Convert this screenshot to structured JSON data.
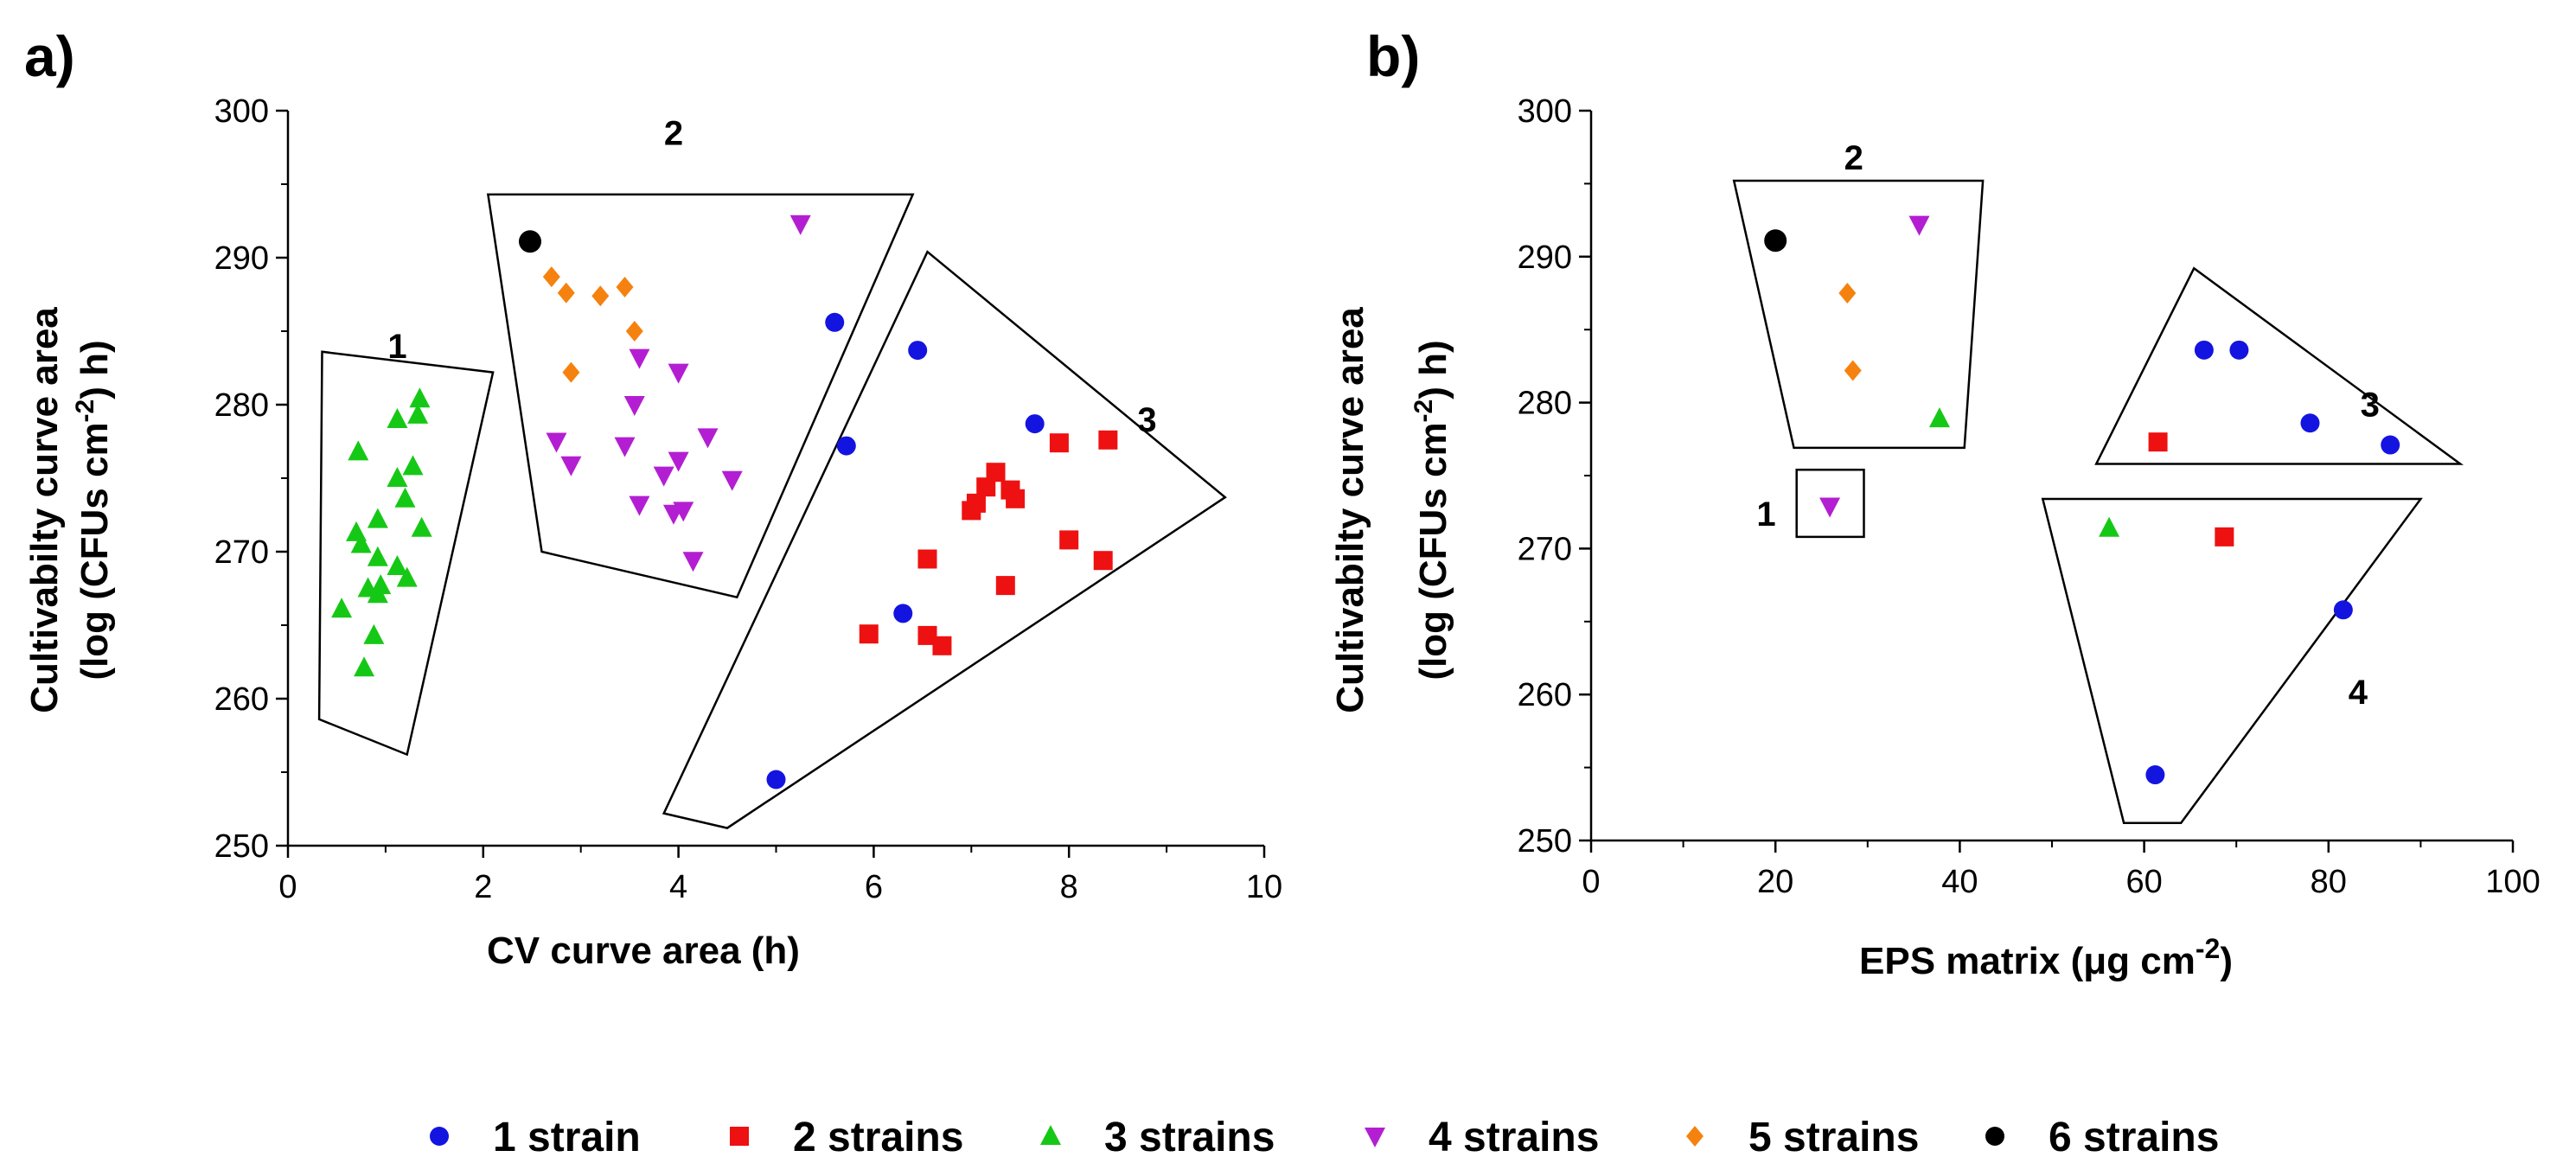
{
  "colors": {
    "1 strain": "#1414e0",
    "2 strains": "#ee1111",
    "3 strains": "#16c816",
    "4 strains": "#b41ed2",
    "5 strains": "#f5820f",
    "6 strains": "#000000"
  },
  "legend": [
    {
      "label": "1 strain",
      "marker": "circle"
    },
    {
      "label": "2 strains",
      "marker": "square"
    },
    {
      "label": "3 strains",
      "marker": "triangle-up"
    },
    {
      "label": "4 strains",
      "marker": "triangle-down"
    },
    {
      "label": "5 strains",
      "marker": "diamond"
    },
    {
      "label": "6 strains",
      "marker": "circle"
    }
  ],
  "chart_data": [
    {
      "type": "scatter",
      "panel_letter": "a)",
      "title": "",
      "xlabel": "CV curve area (h)",
      "ylabel_line1": "Cultivabilty curve area",
      "ylabel_line2_pre": "(log (CFUs cm",
      "ylabel_line2_sup": "-2",
      "ylabel_line2_post": ") h)",
      "xlim": [
        0,
        10
      ],
      "ylim": [
        250,
        300
      ],
      "xticks": [
        0,
        2,
        4,
        6,
        8,
        10
      ],
      "xticklabels": [
        "0",
        "2",
        "4",
        "6",
        "8",
        "10"
      ],
      "yticks": [
        250,
        260,
        270,
        280,
        290,
        300
      ],
      "yticklabels": [
        "250",
        "260",
        "270",
        "280",
        "290",
        "300"
      ],
      "series": [
        {
          "name": "1 strain",
          "marker": "circle",
          "points": [
            [
              5.6,
              285.6
            ],
            [
              6.45,
              283.7
            ],
            [
              5.72,
              277.2
            ],
            [
              7.65,
              278.7
            ],
            [
              6.3,
              265.8
            ],
            [
              5.0,
              254.5
            ]
          ]
        },
        {
          "name": "2 strains",
          "marker": "square",
          "points": [
            [
              8.4,
              277.6
            ],
            [
              7.9,
              277.4
            ],
            [
              7.25,
              275.4
            ],
            [
              7.15,
              274.4
            ],
            [
              7.4,
              274.2
            ],
            [
              7.45,
              273.6
            ],
            [
              7.05,
              273.3
            ],
            [
              7.0,
              272.8
            ],
            [
              8.0,
              270.8
            ],
            [
              6.55,
              269.5
            ],
            [
              8.35,
              269.4
            ],
            [
              7.35,
              267.7
            ],
            [
              5.95,
              264.4
            ],
            [
              6.55,
              264.3
            ],
            [
              6.7,
              263.6
            ]
          ]
        },
        {
          "name": "3 strains",
          "marker": "triangle-up",
          "points": [
            [
              1.35,
              280.4
            ],
            [
              1.12,
              279.0
            ],
            [
              1.33,
              279.3
            ],
            [
              0.72,
              276.8
            ],
            [
              1.28,
              275.8
            ],
            [
              1.12,
              275.0
            ],
            [
              1.2,
              273.6
            ],
            [
              0.92,
              272.2
            ],
            [
              1.37,
              271.6
            ],
            [
              0.7,
              271.3
            ],
            [
              0.75,
              270.5
            ],
            [
              0.92,
              269.6
            ],
            [
              1.12,
              269.0
            ],
            [
              1.22,
              268.2
            ],
            [
              0.95,
              267.7
            ],
            [
              0.82,
              267.5
            ],
            [
              0.92,
              267.1
            ],
            [
              0.55,
              266.1
            ],
            [
              0.88,
              264.3
            ],
            [
              0.78,
              262.1
            ]
          ]
        },
        {
          "name": "4 strains",
          "marker": "triangle-down",
          "points": [
            [
              5.25,
              292.3
            ],
            [
              3.6,
              283.2
            ],
            [
              4.0,
              282.2
            ],
            [
              3.55,
              280.0
            ],
            [
              4.3,
              277.8
            ],
            [
              2.75,
              277.5
            ],
            [
              3.45,
              277.2
            ],
            [
              4.0,
              276.2
            ],
            [
              2.9,
              275.9
            ],
            [
              3.85,
              275.2
            ],
            [
              4.55,
              274.9
            ],
            [
              3.6,
              273.2
            ],
            [
              4.05,
              272.8
            ],
            [
              3.95,
              272.6
            ],
            [
              4.15,
              269.4
            ]
          ]
        },
        {
          "name": "5 strains",
          "marker": "diamond",
          "points": [
            [
              2.7,
              288.7
            ],
            [
              2.85,
              287.6
            ],
            [
              3.2,
              287.4
            ],
            [
              3.45,
              288.0
            ],
            [
              3.55,
              285.0
            ],
            [
              2.9,
              282.2
            ]
          ]
        },
        {
          "name": "6 strains",
          "marker": "circle",
          "points": [
            [
              2.48,
              291.1
            ]
          ]
        }
      ],
      "clusters": [
        {
          "label": "1",
          "label_at": [
            1.12,
            284.0
          ],
          "vertices": [
            [
              0.35,
              283.6
            ],
            [
              2.1,
              282.2
            ],
            [
              1.22,
              256.2
            ],
            [
              0.32,
              258.6
            ]
          ]
        },
        {
          "label": "2",
          "label_at": [
            3.95,
            298.5
          ],
          "vertices": [
            [
              2.05,
              294.3
            ],
            [
              6.4,
              294.3
            ],
            [
              4.6,
              266.9
            ],
            [
              2.6,
              270.0
            ]
          ]
        },
        {
          "label": "3",
          "label_at": [
            8.8,
            279.0
          ],
          "vertices": [
            [
              6.55,
              290.4
            ],
            [
              9.6,
              273.7
            ],
            [
              4.5,
              251.2
            ],
            [
              3.85,
              252.2
            ]
          ]
        }
      ]
    },
    {
      "type": "scatter",
      "panel_letter": "b)",
      "title": "",
      "xlabel_pre": "EPS matrix (μg cm",
      "xlabel_sup": "-2",
      "xlabel_post": ")",
      "ylabel_line1": "Cultivabilty curve area",
      "ylabel_line2_pre": "(log (CFUs cm",
      "ylabel_line2_sup": "-2",
      "ylabel_line2_post": ") h)",
      "xlim": [
        0,
        100
      ],
      "ylim": [
        250,
        300
      ],
      "xticks": [
        0,
        20,
        40,
        60,
        80,
        100
      ],
      "xticklabels": [
        "0",
        "20",
        "40",
        "60",
        "80",
        "100"
      ],
      "yticks": [
        250,
        260,
        270,
        280,
        290,
        300
      ],
      "yticklabels": [
        "250",
        "260",
        "270",
        "280",
        "290",
        "300"
      ],
      "series": [
        {
          "name": "1 strain",
          "marker": "circle",
          "points": [
            [
              66.5,
              283.6
            ],
            [
              70.3,
              283.6
            ],
            [
              78.0,
              278.6
            ],
            [
              86.7,
              277.1
            ],
            [
              81.6,
              265.8
            ],
            [
              61.2,
              254.5
            ]
          ]
        },
        {
          "name": "2 strains",
          "marker": "square",
          "points": [
            [
              61.5,
              277.3
            ],
            [
              68.7,
              270.8
            ]
          ]
        },
        {
          "name": "3 strains",
          "marker": "triangle-up",
          "points": [
            [
              37.8,
              278.9
            ],
            [
              56.2,
              271.4
            ]
          ]
        },
        {
          "name": "4 strains",
          "marker": "triangle-down",
          "points": [
            [
              35.6,
              292.2
            ],
            [
              25.9,
              272.9
            ]
          ]
        },
        {
          "name": "5 strains",
          "marker": "diamond",
          "points": [
            [
              27.8,
              287.5
            ],
            [
              28.4,
              282.2
            ]
          ]
        },
        {
          "name": "6 strains",
          "marker": "circle",
          "points": [
            [
              20.0,
              291.1
            ]
          ]
        }
      ],
      "clusters": [
        {
          "label": "1",
          "label_at": [
            19.0,
            272.4
          ],
          "vertices": [
            [
              22.3,
              275.4
            ],
            [
              29.6,
              275.4
            ],
            [
              29.6,
              270.8
            ],
            [
              22.3,
              270.8
            ]
          ]
        },
        {
          "label": "2",
          "label_at": [
            28.5,
            296.8
          ],
          "vertices": [
            [
              15.5,
              295.2
            ],
            [
              42.5,
              295.2
            ],
            [
              40.5,
              276.9
            ],
            [
              22.0,
              276.9
            ]
          ]
        },
        {
          "label": "3",
          "label_at": [
            84.5,
            279.9
          ],
          "vertices": [
            [
              65.4,
              289.2
            ],
            [
              94.3,
              275.8
            ],
            [
              54.8,
              275.8
            ]
          ]
        },
        {
          "label": "4",
          "label_at": [
            83.2,
            260.2
          ],
          "vertices": [
            [
              49.0,
              273.4
            ],
            [
              90.0,
              273.4
            ],
            [
              64.0,
              251.2
            ],
            [
              57.8,
              251.2
            ]
          ]
        }
      ]
    }
  ]
}
